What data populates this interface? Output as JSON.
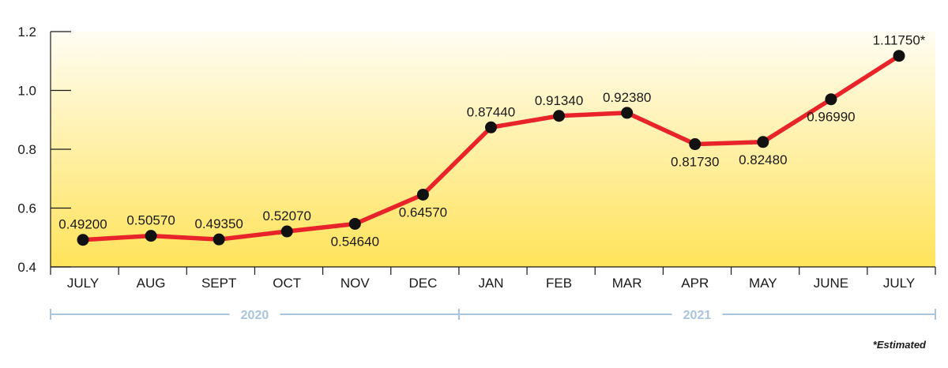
{
  "chart_data": {
    "type": "line",
    "title": "",
    "xlabel": "",
    "ylabel": "",
    "categories": [
      "JULY",
      "AUG",
      "SEPT",
      "OCT",
      "NOV",
      "DEC",
      "JAN",
      "FEB",
      "MAR",
      "APR",
      "MAY",
      "JUNE",
      "JULY"
    ],
    "series": [
      {
        "values": [
          0.492,
          0.5057,
          0.4935,
          0.5207,
          0.5464,
          0.6457,
          0.8744,
          0.9134,
          0.9238,
          0.8173,
          0.8248,
          0.9699,
          1.1175
        ],
        "data_labels": [
          "0.49200",
          "0.50570",
          "0.49350",
          "0.52070",
          "0.54640",
          "0.64570",
          "0.87440",
          "0.91340",
          "0.92380",
          "0.81730",
          "0.82480",
          "0.96990",
          "1.11750*"
        ],
        "label_positions": [
          "above",
          "above",
          "above",
          "above",
          "below",
          "below",
          "above",
          "above",
          "above",
          "below",
          "below",
          "below",
          "above"
        ],
        "color": "#e8232a"
      }
    ],
    "ylim": [
      0.4,
      1.2
    ],
    "yticks": [
      0.4,
      0.6,
      0.8,
      1.0,
      1.2
    ],
    "ytick_labels": [
      "0.4",
      "0.6",
      "0.8",
      "1.0",
      "1.2"
    ],
    "grid": false,
    "background_gradient": [
      "#fffdf3",
      "#ffe35a"
    ],
    "years": [
      {
        "label": "2020",
        "from_index": 0,
        "to_index": 5
      },
      {
        "label": "2021",
        "from_index": 6,
        "to_index": 12
      }
    ],
    "year_color": "#a9c4dc",
    "footnote": "*Estimated"
  }
}
